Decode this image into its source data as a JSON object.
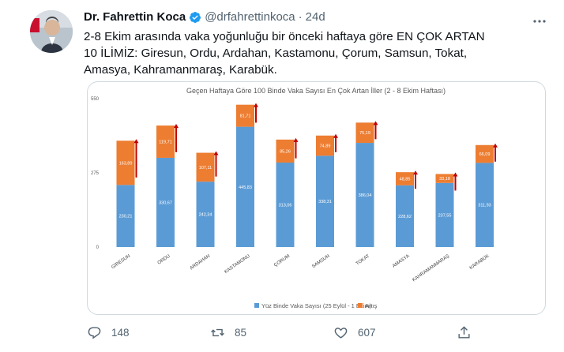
{
  "tweet": {
    "author_name": "Dr. Fahrettin Koca",
    "handle": "@drfahrettinkoca",
    "separator": "·",
    "time": "24d",
    "more_icon": "ellipsis-icon",
    "lines": [
      "2-8 Ekim arasında vaka yoğunluğu bir önceki haftaya göre EN ÇOK ARTAN",
      "10 İLİMİZ: Giresun, Ordu, Ardahan, Kastamonu, Çorum, Samsun, Tokat,",
      "Amasya, Kahramanmaraş, Karabük."
    ]
  },
  "actions": {
    "reply_count": "148",
    "retweet_count": "85",
    "like_count": "607"
  },
  "colors": {
    "base": "#5b9bd5",
    "increase": "#ed7d31",
    "arrow": "#c00000",
    "verified": "#1d9bf0"
  },
  "chart_data": {
    "type": "bar",
    "stacked": true,
    "title": "Geçen Haftaya Göre 100 Binde Vaka Sayısı En Çok Artan İller (2 - 8 Ekim Haftası)",
    "categories": [
      "GİRESUN",
      "ORDU",
      "ARDAHAN",
      "KASTAMONU",
      "ÇORUM",
      "SAMSUN",
      "TOKAT",
      "AMASYA",
      "KAHRAMANMARAŞ",
      "KARABÜK"
    ],
    "series": [
      {
        "name": "Yüz Binde Vaka Sayısı (25 Eylül - 1 Ekim)",
        "values": [
          230.21,
          330.67,
          242.34,
          445.83,
          313.06,
          338.31,
          386.04,
          228.62,
          237.55,
          311.93
        ]
      },
      {
        "name": "Artış",
        "values": [
          163.89,
          119.71,
          107.11,
          81.71,
          85.26,
          74.89,
          75.19,
          48.85,
          33.18,
          66.09
        ]
      }
    ],
    "value_labels": {
      "base": [
        "230,21",
        "330,67",
        "242,34",
        "445,83",
        "313,06",
        "338,31",
        "386,04",
        "228,62",
        "237,55",
        "311,93"
      ],
      "increase": [
        "163,89",
        "119,71",
        "107,11",
        "81,71",
        "85,26",
        "74,89",
        "75,19",
        "48,85",
        "33,18",
        "66,09"
      ]
    },
    "y_ticks": [
      "550",
      "275",
      "0"
    ],
    "ylim": [
      0,
      550
    ],
    "legend_position": "bottom",
    "grid": false
  }
}
